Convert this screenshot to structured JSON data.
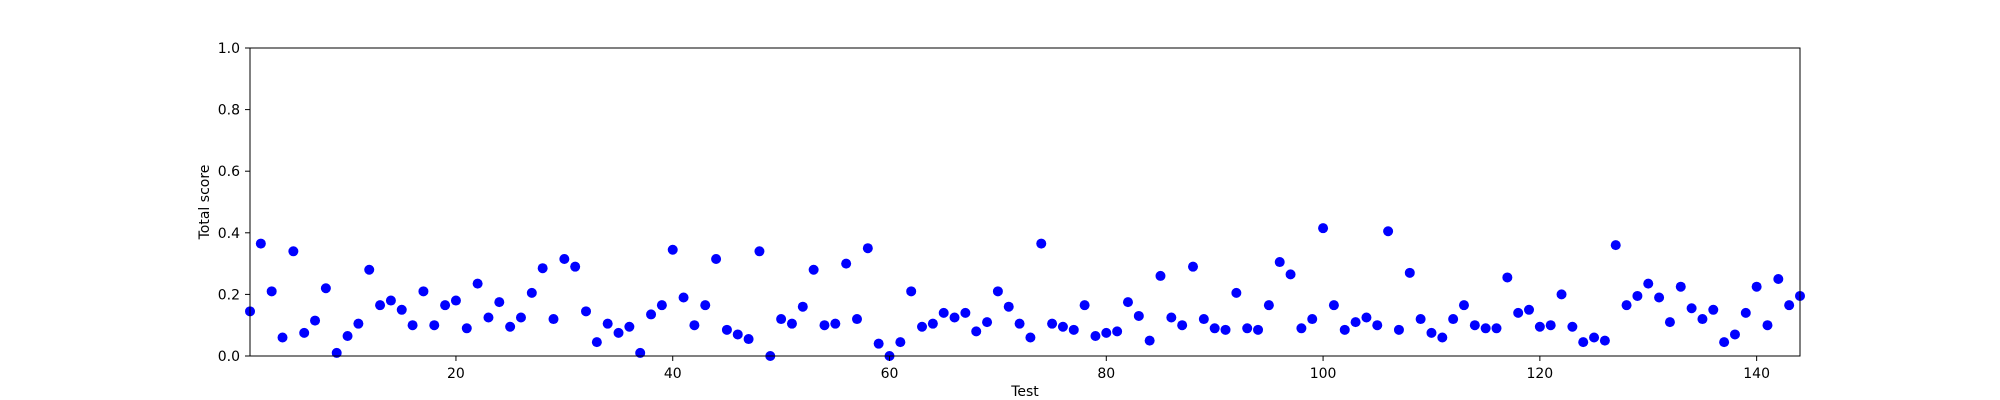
{
  "chart_data": {
    "type": "scatter",
    "title": "",
    "xlabel": "Test",
    "ylabel": "Total score",
    "xlim": [
      1,
      144
    ],
    "ylim": [
      0,
      1.0
    ],
    "grid": false,
    "marker_color": "#0000ff",
    "x_ticks": [
      20,
      40,
      60,
      80,
      100,
      120,
      140
    ],
    "y_ticks": [
      "0.0",
      "0.2",
      "0.4",
      "0.6",
      "0.8",
      "1.0"
    ],
    "series": [
      {
        "x": [
          1,
          2,
          3,
          4,
          5,
          6,
          7,
          8,
          9,
          10,
          11,
          12,
          13,
          14,
          15,
          16,
          17,
          18,
          19,
          20,
          21,
          22,
          23,
          24,
          25,
          26,
          27,
          28,
          29,
          30,
          31,
          32,
          33,
          34,
          35,
          36,
          37,
          38,
          39,
          40,
          41,
          42,
          43,
          44,
          45,
          46,
          47,
          48,
          49,
          50,
          51,
          52,
          53,
          54,
          55,
          56,
          57,
          58,
          59,
          60,
          61,
          62,
          63,
          64,
          65,
          66,
          67,
          68,
          69,
          70,
          71,
          72,
          73,
          74,
          75,
          76,
          77,
          78,
          79,
          80,
          81,
          82,
          83,
          84,
          85,
          86,
          87,
          88,
          89,
          90,
          91,
          92,
          93,
          94,
          95,
          96,
          97,
          98,
          99,
          100,
          101,
          102,
          103,
          104,
          105,
          106,
          107,
          108,
          109,
          110,
          111,
          112,
          113,
          114,
          115,
          116,
          117,
          118,
          119,
          120,
          121,
          122,
          123,
          124,
          125,
          126,
          127,
          128,
          129,
          130,
          131,
          132,
          133,
          134,
          135,
          136,
          137,
          138,
          139,
          140,
          141,
          142,
          143,
          144
        ],
        "y": [
          0.145,
          0.365,
          0.21,
          0.06,
          0.34,
          0.075,
          0.115,
          0.22,
          0.01,
          0.065,
          0.105,
          0.28,
          0.165,
          0.18,
          0.15,
          0.1,
          0.21,
          0.1,
          0.165,
          0.18,
          0.09,
          0.235,
          0.125,
          0.175,
          0.095,
          0.125,
          0.205,
          0.285,
          0.12,
          0.315,
          0.29,
          0.145,
          0.045,
          0.105,
          0.075,
          0.095,
          0.01,
          0.135,
          0.165,
          0.345,
          0.19,
          0.1,
          0.165,
          0.315,
          0.085,
          0.07,
          0.055,
          0.34,
          0.0,
          0.12,
          0.105,
          0.16,
          0.28,
          0.1,
          0.105,
          0.3,
          0.12,
          0.35,
          0.04,
          0.0,
          0.045,
          0.21,
          0.095,
          0.105,
          0.14,
          0.125,
          0.14,
          0.08,
          0.11,
          0.21,
          0.16,
          0.105,
          0.06,
          0.365,
          0.105,
          0.095,
          0.085,
          0.165,
          0.065,
          0.075,
          0.08,
          0.175,
          0.13,
          0.05,
          0.26,
          0.125,
          0.1,
          0.29,
          0.12,
          0.09,
          0.085,
          0.205,
          0.09,
          0.085,
          0.165,
          0.305,
          0.265,
          0.09,
          0.12,
          0.415,
          0.165,
          0.085,
          0.11,
          0.125,
          0.1,
          0.405,
          0.085,
          0.27,
          0.12,
          0.075,
          0.06,
          0.12,
          0.165,
          0.1,
          0.09,
          0.09,
          0.255,
          0.14,
          0.15,
          0.095,
          0.1,
          0.2,
          0.095,
          0.045,
          0.06,
          0.05,
          0.36,
          0.165,
          0.195,
          0.235,
          0.19,
          0.11,
          0.225,
          0.155,
          0.12,
          0.15,
          0.045,
          0.07,
          0.14,
          0.225,
          0.1,
          0.25,
          0.165,
          0.195
        ]
      }
    ]
  }
}
